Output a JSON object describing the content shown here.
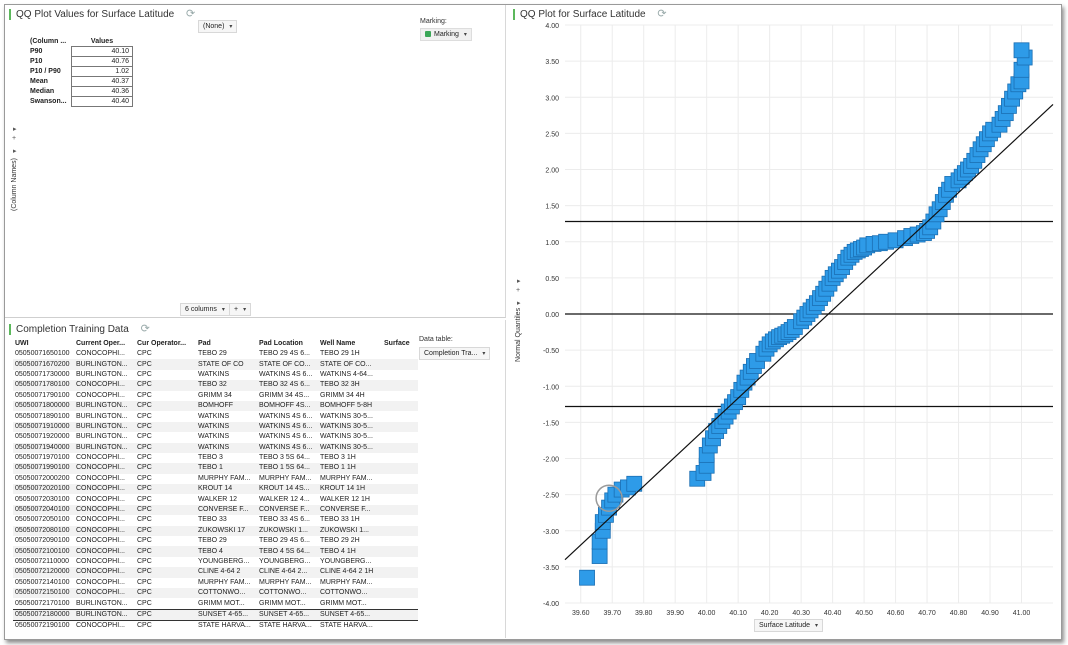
{
  "summary_panel": {
    "title": "QQ Plot Values for Surface Latitude",
    "column_header": "(Column ...",
    "values_header": "Values",
    "rows": [
      {
        "label": "P90",
        "value": "40.10"
      },
      {
        "label": "P10",
        "value": "40.76"
      },
      {
        "label": "P10 / P90",
        "value": "1.02"
      },
      {
        "label": "Mean",
        "value": "40.37"
      },
      {
        "label": "Median",
        "value": "40.36"
      },
      {
        "label": "Swanson...",
        "value": "40.40"
      }
    ],
    "none_dropdown": "(None)",
    "marking_label": "Marking:",
    "marking_value": "Marking",
    "column_names_axis": "(Column Names)",
    "columns_dropdown": "6 columns",
    "add_button": "+",
    "expand_arrow": "▸",
    "marking_color": "#3aa657"
  },
  "data_panel": {
    "title": "Completion Training Data",
    "data_table_label": "Data table:",
    "data_table_value": "Completion Tra...",
    "columns": [
      "UWI",
      "Current Oper...",
      "Cur Operator...",
      "Pad",
      "Pad Location",
      "Well Name",
      "Surface"
    ],
    "rows": [
      [
        "05050071650100",
        "CONOCOPHI...",
        "CPC",
        "TEBO 29",
        "TEBO 29 4S 6...",
        "TEBO 29 1H"
      ],
      [
        "05050071670200",
        "BURLINGTON...",
        "CPC",
        "STATE OF CO",
        "STATE OF CO...",
        "STATE OF CO..."
      ],
      [
        "05050071730000",
        "BURLINGTON...",
        "CPC",
        "WATKINS",
        "WATKINS 4S 6...",
        "WATKINS 4-64..."
      ],
      [
        "05050071780100",
        "CONOCOPHI...",
        "CPC",
        "TEBO 32",
        "TEBO 32 4S 6...",
        "TEBO 32 3H"
      ],
      [
        "05050071790100",
        "CONOCOPHI...",
        "CPC",
        "GRIMM 34",
        "GRIMM 34 4S...",
        "GRIMM 34 4H"
      ],
      [
        "05050071800000",
        "BURLINGTON...",
        "CPC",
        "BOMHOFF",
        "BOMHOFF 4S...",
        "BOMHOFF 5-8H"
      ],
      [
        "05050071890100",
        "BURLINGTON...",
        "CPC",
        "WATKINS",
        "WATKINS 4S 6...",
        "WATKINS 30-5..."
      ],
      [
        "05050071910000",
        "BURLINGTON...",
        "CPC",
        "WATKINS",
        "WATKINS 4S 6...",
        "WATKINS 30-5..."
      ],
      [
        "05050071920000",
        "BURLINGTON...",
        "CPC",
        "WATKINS",
        "WATKINS 4S 6...",
        "WATKINS 30-5..."
      ],
      [
        "05050071940000",
        "BURLINGTON...",
        "CPC",
        "WATKINS",
        "WATKINS 4S 6...",
        "WATKINS 30-5..."
      ],
      [
        "05050071970100",
        "CONOCOPHI...",
        "CPC",
        "TEBO 3",
        "TEBO 3 5S 64...",
        "TEBO 3 1H"
      ],
      [
        "05050071990100",
        "CONOCOPHI...",
        "CPC",
        "TEBO 1",
        "TEBO 1 5S 64...",
        "TEBO 1 1H"
      ],
      [
        "05050072000200",
        "CONOCOPHI...",
        "CPC",
        "MURPHY FAM...",
        "MURPHY FAM...",
        "MURPHY FAM..."
      ],
      [
        "05050072020100",
        "CONOCOPHI...",
        "CPC",
        "KROUT 14",
        "KROUT 14 4S...",
        "KROUT 14 1H"
      ],
      [
        "05050072030100",
        "CONOCOPHI...",
        "CPC",
        "WALKER 12",
        "WALKER 12 4...",
        "WALKER 12 1H"
      ],
      [
        "05050072040100",
        "CONOCOPHI...",
        "CPC",
        "CONVERSE F...",
        "CONVERSE F...",
        "CONVERSE F..."
      ],
      [
        "05050072050100",
        "CONOCOPHI...",
        "CPC",
        "TEBO 33",
        "TEBO 33 4S 6...",
        "TEBO 33 1H"
      ],
      [
        "05050072080100",
        "CONOCOPHI...",
        "CPC",
        "ZUKOWSKI 17",
        "ZUKOWSKI 1...",
        "ZUKOWSKI 1..."
      ],
      [
        "05050072090100",
        "CONOCOPHI...",
        "CPC",
        "TEBO 29",
        "TEBO 29 4S 6...",
        "TEBO 29 2H"
      ],
      [
        "05050072100100",
        "CONOCOPHI...",
        "CPC",
        "TEBO 4",
        "TEBO 4 5S 64...",
        "TEBO 4 1H"
      ],
      [
        "05050072110000",
        "CONOCOPHI...",
        "CPC",
        "YOUNGBERG...",
        "YOUNGBERG...",
        "YOUNGBERG..."
      ],
      [
        "05050072120000",
        "CONOCOPHI...",
        "CPC",
        "CLINE 4-64 2",
        "CLINE 4-64 2...",
        "CLINE 4-64 2 1H"
      ],
      [
        "05050072140100",
        "CONOCOPHI...",
        "CPC",
        "MURPHY FAM...",
        "MURPHY FAM...",
        "MURPHY FAM..."
      ],
      [
        "05050072150100",
        "CONOCOPHI...",
        "CPC",
        "COTTONWO...",
        "COTTONWO...",
        "COTTONWO..."
      ],
      [
        "05050072170100",
        "BURLINGTON...",
        "CPC",
        "GRIMM MOT...",
        "GRIMM MOT...",
        "GRIMM MOT..."
      ],
      [
        "05050072180000",
        "BURLINGTON...",
        "CPC",
        "SUNSET 4-65...",
        "SUNSET 4-65...",
        "SUNSET 4-65..."
      ],
      [
        "05050072190100",
        "CONOCOPHI...",
        "CPC",
        "STATE HARVA...",
        "STATE HARVA...",
        "STATE HARVA..."
      ]
    ]
  },
  "plot_panel": {
    "title": "QQ Plot for Surface Latitude",
    "x_dropdown": "Surface Latitude",
    "y_axis_label": "Normal Quantiles"
  },
  "chart_data": {
    "type": "scatter",
    "title": "QQ Plot for Surface Latitude",
    "xlabel": "Surface Latitude",
    "ylabel": "Normal Quantiles",
    "xlim": [
      39.55,
      41.1
    ],
    "ylim": [
      -4.0,
      4.0
    ],
    "x_ticks": [
      "39.60",
      "39.70",
      "39.80",
      "39.90",
      "40.00",
      "40.10",
      "40.20",
      "40.30",
      "40.40",
      "40.50",
      "40.60",
      "40.70",
      "40.80",
      "40.90",
      "41.00"
    ],
    "y_ticks": [
      "4.00",
      "3.50",
      "3.00",
      "2.50",
      "2.00",
      "1.50",
      "1.00",
      "0.50",
      "0.00",
      "-0.50",
      "-1.00",
      "-1.50",
      "-2.00",
      "-2.50",
      "-3.00",
      "-3.50",
      "-4.00"
    ],
    "marker_color": "#2e9be8",
    "marker_edge": "#1b6fb3",
    "horizontal_lines": [
      1.28,
      0.0,
      -1.28
    ],
    "fit_line": {
      "x": [
        39.55,
        41.1
      ],
      "y": [
        -3.4,
        2.9
      ]
    },
    "highlighted_point": {
      "x": 39.69,
      "y": -2.55
    },
    "series": [
      {
        "x": [
          39.62,
          39.66,
          39.66,
          39.67,
          39.67,
          39.68,
          39.69,
          39.7,
          39.71,
          39.73,
          39.75,
          39.77,
          39.97,
          39.99,
          40.0,
          40.0,
          40.01,
          40.02,
          40.03,
          40.04,
          40.05,
          40.06,
          40.07,
          40.08,
          40.09,
          40.1,
          40.11,
          40.12,
          40.13,
          40.14,
          40.15,
          40.16,
          40.18,
          40.19,
          40.2,
          40.21,
          40.22,
          40.23,
          40.24,
          40.25,
          40.26,
          40.27,
          40.28,
          40.3,
          40.31,
          40.32,
          40.33,
          40.34,
          40.35,
          40.36,
          40.37,
          40.38,
          40.39,
          40.4,
          40.41,
          40.42,
          40.43,
          40.44,
          40.45,
          40.46,
          40.47,
          40.48,
          40.49,
          40.5,
          40.51,
          40.53,
          40.55,
          40.57,
          40.6,
          40.63,
          40.65,
          40.67,
          40.69,
          40.7,
          40.71,
          40.72,
          40.73,
          40.74,
          40.75,
          40.76,
          40.77,
          40.78,
          40.8,
          40.81,
          40.82,
          40.83,
          40.84,
          40.85,
          40.86,
          40.87,
          40.88,
          40.89,
          40.9,
          40.91,
          40.93,
          40.94,
          40.95,
          40.96,
          40.97,
          40.98,
          40.99,
          41.0,
          41.0,
          41.01,
          41.0
        ],
        "y": [
          -3.65,
          -3.35,
          -3.15,
          -3.0,
          -2.88,
          -2.78,
          -2.68,
          -2.58,
          -2.5,
          -2.43,
          -2.4,
          -2.35,
          -2.28,
          -2.2,
          -2.1,
          -1.95,
          -1.82,
          -1.72,
          -1.62,
          -1.55,
          -1.48,
          -1.42,
          -1.35,
          -1.28,
          -1.22,
          -1.15,
          -1.05,
          -0.95,
          -0.88,
          -0.8,
          -0.72,
          -0.65,
          -0.55,
          -0.48,
          -0.42,
          -0.38,
          -0.35,
          -0.32,
          -0.3,
          -0.28,
          -0.25,
          -0.22,
          -0.18,
          -0.1,
          -0.05,
          0.0,
          0.05,
          0.1,
          0.15,
          0.22,
          0.28,
          0.35,
          0.42,
          0.5,
          0.55,
          0.6,
          0.65,
          0.72,
          0.78,
          0.82,
          0.86,
          0.88,
          0.9,
          0.92,
          0.95,
          0.97,
          0.98,
          1.0,
          1.02,
          1.05,
          1.08,
          1.1,
          1.12,
          1.15,
          1.2,
          1.28,
          1.38,
          1.45,
          1.55,
          1.65,
          1.72,
          1.8,
          1.85,
          1.9,
          1.95,
          2.0,
          2.05,
          2.12,
          2.2,
          2.28,
          2.35,
          2.42,
          2.5,
          2.55,
          2.62,
          2.7,
          2.78,
          2.88,
          2.98,
          3.08,
          3.18,
          3.22,
          3.38,
          3.55,
          3.65
        ]
      }
    ]
  }
}
